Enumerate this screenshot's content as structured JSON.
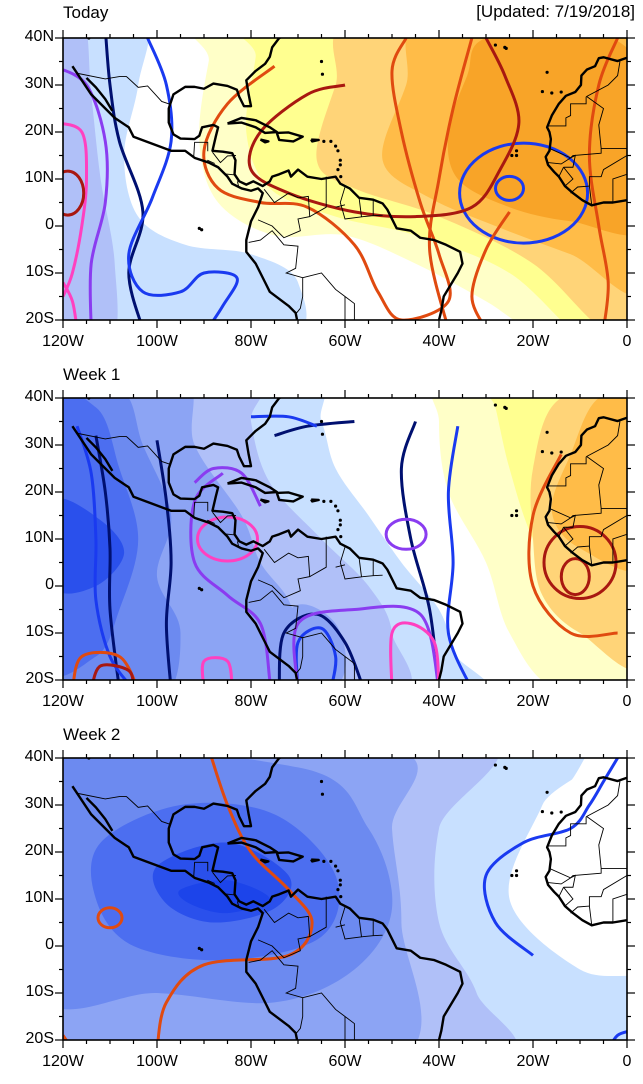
{
  "updated": "[Updated: 7/19/2018]",
  "panels": [
    {
      "title": "Today"
    },
    {
      "title": "Week 1"
    },
    {
      "title": "Week 2"
    }
  ],
  "lat_ticks": [
    "40N",
    "30N",
    "20N",
    "10N",
    "0",
    "10S",
    "20S"
  ],
  "lon_ticks": [
    "120W",
    "100W",
    "80W",
    "60W",
    "40W",
    "20W",
    "0"
  ],
  "colors": {
    "blue_levels": [
      "#c8e0ff",
      "#b0c0f8",
      "#8ca4f4",
      "#6c8af0",
      "#4c6ef0",
      "#2a50ec"
    ],
    "yellow_levels": [
      "#ffffc8",
      "#ffff90",
      "#ffd478",
      "#ffbc48",
      "#f8a428"
    ],
    "contours": [
      "#001070",
      "#1a3af0",
      "#8a3cf0",
      "#ff40c0",
      "#e04a10",
      "#a81810"
    ]
  }
}
